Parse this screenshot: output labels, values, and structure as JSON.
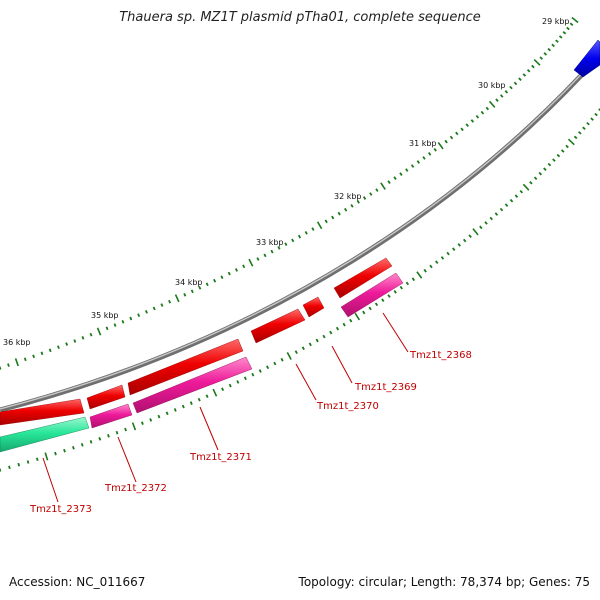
{
  "title": "Thauera sp. MZ1T plasmid pTha01, complete sequence",
  "footer": {
    "accession": "Accession: NC_011667",
    "summary": "Topology: circular; Length: 78,374 bp; Genes: 75"
  },
  "colors": {
    "forward_cds": "#ee0000",
    "reverse_cds": "#ee1a9a",
    "rna_gene": "#28e79a",
    "other_feature": "#0000ee",
    "backbone": "#8a8a8a",
    "ticks": "#1b7a1b",
    "label": "#c00000"
  },
  "ticks": [
    "29 kbp",
    "30 kbp",
    "31 kbp",
    "32 kbp",
    "33 kbp",
    "34 kbp",
    "35 kbp",
    "36 kbp"
  ],
  "genes": [
    {
      "id": "Tmz1t_2368",
      "strand": "reverse"
    },
    {
      "id": "Tmz1t_2369",
      "strand": "forward"
    },
    {
      "id": "Tmz1t_2370",
      "strand": "forward"
    },
    {
      "id": "Tmz1t_2371",
      "strand": "reverse"
    },
    {
      "id": "Tmz1t_2372",
      "strand": "reverse"
    },
    {
      "id": "Tmz1t_2373",
      "strand": "reverse"
    }
  ]
}
